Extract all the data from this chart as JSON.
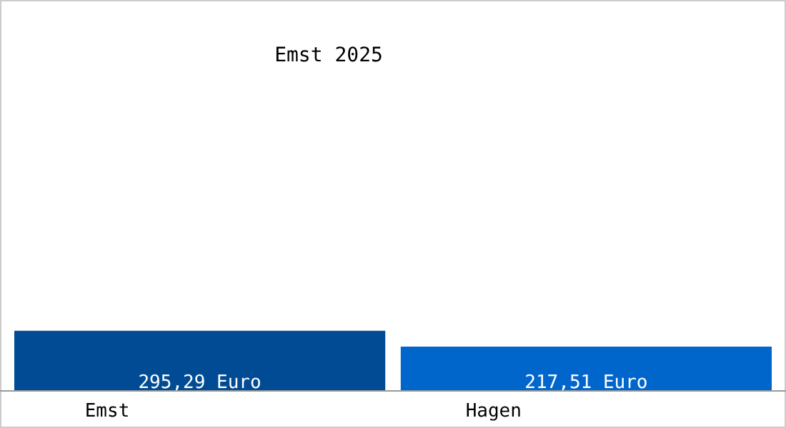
{
  "chart_data": {
    "type": "bar",
    "title": "Emst 2025",
    "categories": [
      "Emst",
      "Hagen"
    ],
    "values": [
      295.29,
      217.51
    ],
    "colors": [
      "#004b93",
      "#0066cc"
    ],
    "value_labels": [
      "295,29 Euro",
      "217,51 Euro"
    ],
    "data_labels": false
  }
}
